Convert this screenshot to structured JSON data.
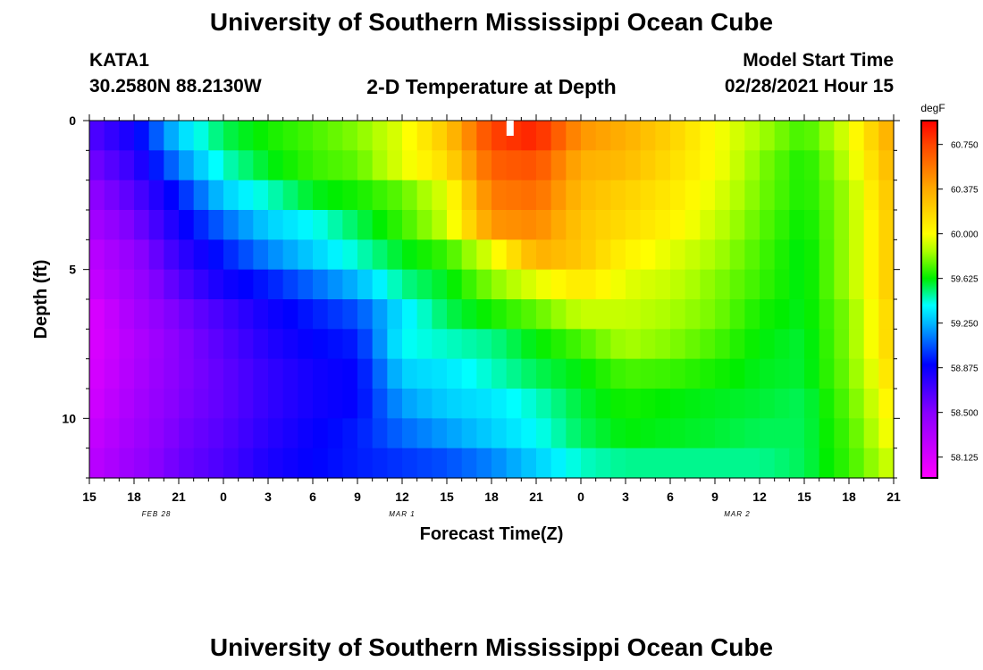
{
  "header": {
    "title": "University of Southern Mississippi Ocean Cube",
    "station_id": "KATA1",
    "coordinates": "30.2580N 88.2130W",
    "plot_title": "2-D Temperature at Depth",
    "model_start_label": "Model Start Time",
    "model_start_value": "02/28/2021 Hour 15"
  },
  "footer": {
    "title": "University of Southern Mississippi Ocean Cube"
  },
  "chart_data": {
    "type": "heatmap",
    "title": "2-D Temperature at Depth",
    "xlabel": "Forecast Time(Z)",
    "ylabel": "Depth (ft)",
    "x_start_hour": 0,
    "x_end_hour": 54,
    "x_step_hours": 1,
    "x_ticks": [
      {
        "hour": 0,
        "label": "15"
      },
      {
        "hour": 3,
        "label": "18"
      },
      {
        "hour": 6,
        "label": "21"
      },
      {
        "hour": 9,
        "label": "0"
      },
      {
        "hour": 12,
        "label": "3"
      },
      {
        "hour": 15,
        "label": "6"
      },
      {
        "hour": 18,
        "label": "9"
      },
      {
        "hour": 21,
        "label": "12"
      },
      {
        "hour": 24,
        "label": "15"
      },
      {
        "hour": 27,
        "label": "18"
      },
      {
        "hour": 30,
        "label": "21"
      },
      {
        "hour": 33,
        "label": "0"
      },
      {
        "hour": 36,
        "label": "3"
      },
      {
        "hour": 39,
        "label": "6"
      },
      {
        "hour": 42,
        "label": "9"
      },
      {
        "hour": 45,
        "label": "12"
      },
      {
        "hour": 48,
        "label": "15"
      },
      {
        "hour": 51,
        "label": "18"
      },
      {
        "hour": 54,
        "label": "21"
      }
    ],
    "date_labels": [
      {
        "hour": 4.5,
        "label": "FEB 28"
      },
      {
        "hour": 21,
        "label": "MAR 1"
      },
      {
        "hour": 43.5,
        "label": "MAR 2"
      }
    ],
    "depth_levels": [
      0,
      1,
      2,
      3,
      4,
      5,
      6,
      7,
      8,
      9,
      10,
      11
    ],
    "ylim": [
      0,
      12
    ],
    "y_ticks": [
      0,
      5,
      10
    ],
    "colorbar": {
      "unit": "degF",
      "min": 57.95,
      "max": 60.95,
      "tick_values": [
        58.125,
        58.5,
        58.875,
        59.25,
        59.625,
        60.0,
        60.375,
        60.75
      ],
      "tick_labels": [
        "58.125",
        "58.500",
        "58.875",
        "59.250",
        "59.625",
        "60.000",
        "60.375",
        "60.750"
      ],
      "stops": [
        {
          "value": 57.95,
          "color": "#ff00ff"
        },
        {
          "value": 58.5,
          "color": "#8800ff"
        },
        {
          "value": 58.9,
          "color": "#0000ff"
        },
        {
          "value": 59.25,
          "color": "#00b8ff"
        },
        {
          "value": 59.4,
          "color": "#00ffff"
        },
        {
          "value": 59.625,
          "color": "#00ee00"
        },
        {
          "value": 59.85,
          "color": "#aaff00"
        },
        {
          "value": 60.0,
          "color": "#ffff00"
        },
        {
          "value": 60.375,
          "color": "#ffaa00"
        },
        {
          "value": 60.75,
          "color": "#ff4400"
        },
        {
          "value": 60.95,
          "color": "#ff0000"
        }
      ]
    },
    "temperature_keypoints": {
      "hours": [
        0,
        3,
        6,
        9,
        12,
        15,
        18,
        21,
        24,
        27,
        30,
        33,
        36,
        39,
        42,
        45,
        48,
        51,
        53,
        54
      ],
      "rows": [
        [
          58.65,
          58.85,
          59.3,
          59.55,
          59.65,
          59.72,
          59.8,
          59.95,
          60.25,
          60.75,
          60.85,
          60.45,
          60.35,
          60.2,
          60.0,
          59.85,
          59.7,
          59.95,
          60.25,
          60.4
        ],
        [
          58.55,
          58.75,
          59.15,
          59.45,
          59.6,
          59.7,
          59.75,
          59.95,
          60.15,
          60.65,
          60.7,
          60.35,
          60.3,
          60.15,
          60.0,
          59.8,
          59.65,
          59.9,
          60.2,
          60.35
        ],
        [
          58.45,
          58.65,
          58.95,
          59.3,
          59.45,
          59.6,
          59.65,
          59.75,
          59.95,
          60.55,
          60.6,
          60.3,
          60.2,
          60.1,
          59.95,
          59.78,
          59.65,
          59.85,
          60.15,
          60.3
        ],
        [
          58.35,
          58.55,
          58.85,
          59.1,
          59.3,
          59.4,
          59.55,
          59.7,
          59.9,
          60.45,
          60.5,
          60.25,
          60.15,
          60.05,
          59.9,
          59.75,
          59.62,
          59.85,
          60.1,
          60.3
        ],
        [
          58.25,
          58.45,
          58.75,
          58.95,
          59.15,
          59.3,
          59.45,
          59.6,
          59.7,
          59.95,
          60.35,
          60.25,
          60.05,
          59.95,
          59.85,
          59.72,
          59.6,
          59.85,
          60.1,
          60.3
        ],
        [
          58.2,
          58.4,
          58.65,
          58.85,
          58.95,
          59.1,
          59.25,
          59.5,
          59.6,
          59.8,
          59.95,
          60.1,
          59.95,
          59.9,
          59.8,
          59.7,
          59.6,
          59.85,
          60.1,
          60.3
        ],
        [
          58.1,
          58.35,
          58.55,
          58.7,
          58.85,
          58.95,
          59.05,
          59.35,
          59.55,
          59.65,
          59.75,
          59.9,
          59.9,
          59.85,
          59.78,
          59.65,
          59.6,
          59.8,
          60.05,
          60.25
        ],
        [
          58.1,
          58.3,
          58.5,
          58.65,
          58.8,
          58.9,
          58.95,
          59.4,
          59.45,
          59.5,
          59.62,
          59.72,
          59.85,
          59.8,
          59.72,
          59.62,
          59.58,
          59.8,
          60.05,
          60.25
        ],
        [
          58.12,
          58.32,
          58.5,
          58.62,
          58.75,
          58.85,
          58.9,
          59.3,
          59.35,
          59.45,
          59.55,
          59.62,
          59.72,
          59.7,
          59.65,
          59.6,
          59.58,
          59.78,
          60.0,
          60.2
        ],
        [
          58.15,
          58.35,
          58.52,
          58.62,
          58.75,
          58.85,
          58.9,
          59.2,
          59.3,
          59.35,
          59.45,
          59.58,
          59.65,
          59.62,
          59.6,
          59.58,
          59.55,
          59.75,
          59.95,
          60.1
        ],
        [
          58.2,
          58.38,
          58.55,
          58.65,
          58.78,
          58.88,
          58.95,
          59.1,
          59.2,
          59.3,
          59.4,
          59.55,
          59.62,
          59.6,
          59.58,
          59.55,
          59.55,
          59.72,
          59.9,
          60.05
        ],
        [
          58.25,
          58.42,
          58.58,
          58.68,
          58.82,
          58.9,
          58.95,
          59.0,
          59.05,
          59.15,
          59.3,
          59.45,
          59.5,
          59.5,
          59.5,
          59.5,
          59.55,
          59.7,
          59.85,
          59.95
        ]
      ]
    },
    "marker": {
      "hour": 28.25,
      "depth": 0,
      "color": "#ffffff"
    }
  }
}
